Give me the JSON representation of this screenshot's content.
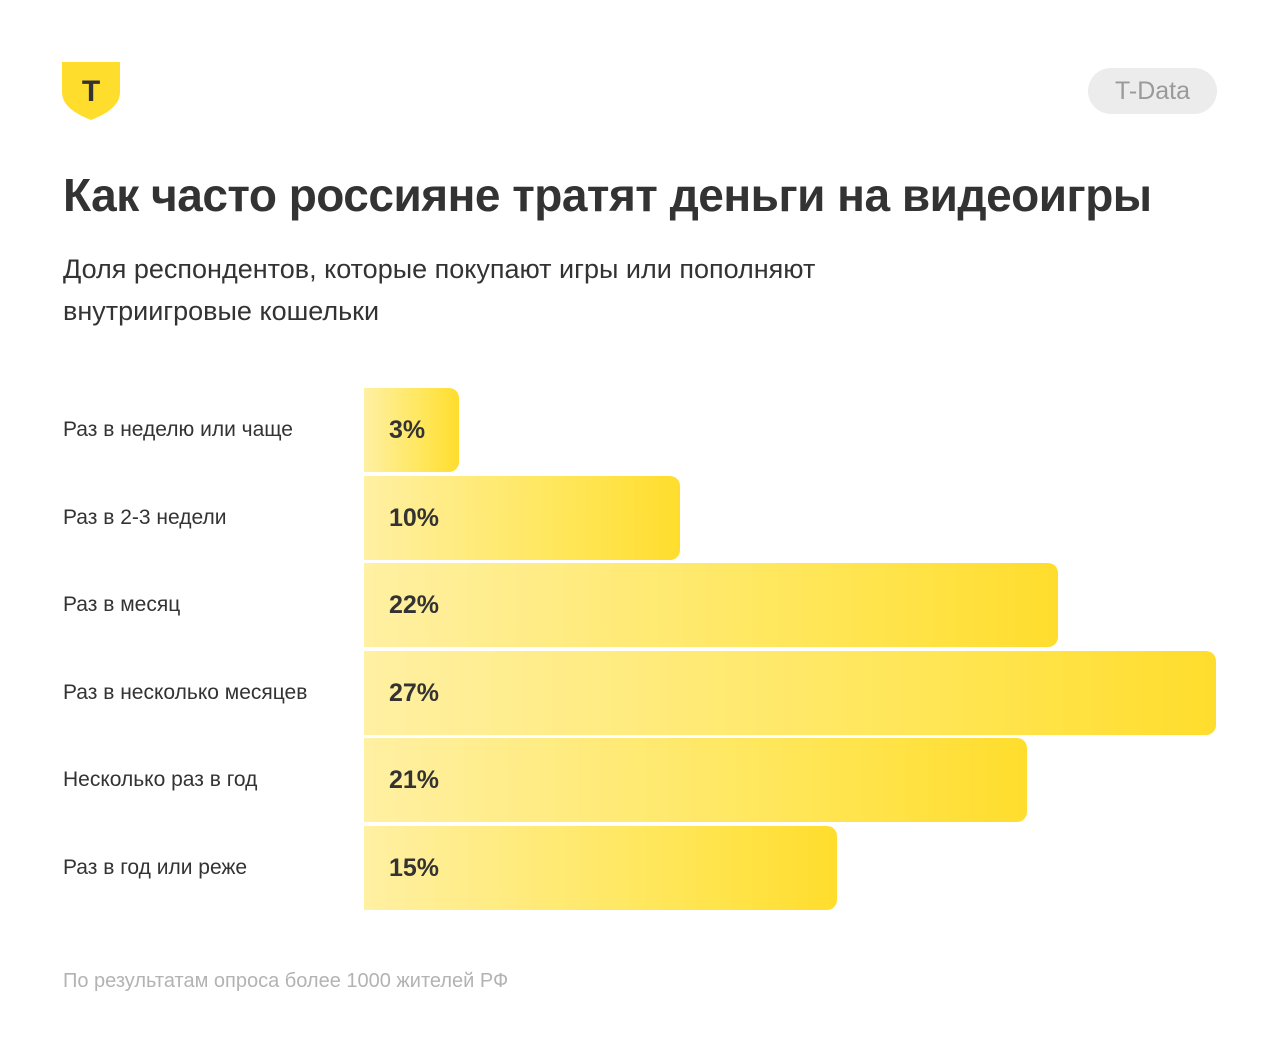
{
  "brand": {
    "logo_letter": "T",
    "logo_color": "#FFDD2D",
    "badge_label": "T-Data"
  },
  "title": "Как часто россияне тратят деньги на видеоигры",
  "subtitle": "Доля респондентов, которые покупают игры или пополняют внутриигровые кошельки",
  "chart_data": {
    "type": "bar",
    "orientation": "horizontal",
    "categories": [
      "Раз в неделю или чаще",
      "Раз в 2-3 недели",
      "Раз в месяц",
      "Раз в несколько месяцев",
      "Несколько раз в год",
      "Раз в год или реже"
    ],
    "values": [
      3,
      10,
      22,
      27,
      21,
      15
    ],
    "value_labels": [
      "3%",
      "10%",
      "22%",
      "27%",
      "21%",
      "15%"
    ],
    "unit": "%",
    "xlim": [
      0,
      27
    ],
    "grid": false,
    "bar_color": "#FFDD2D"
  },
  "footnote": "По результатам опроса более 1000 жителей РФ"
}
